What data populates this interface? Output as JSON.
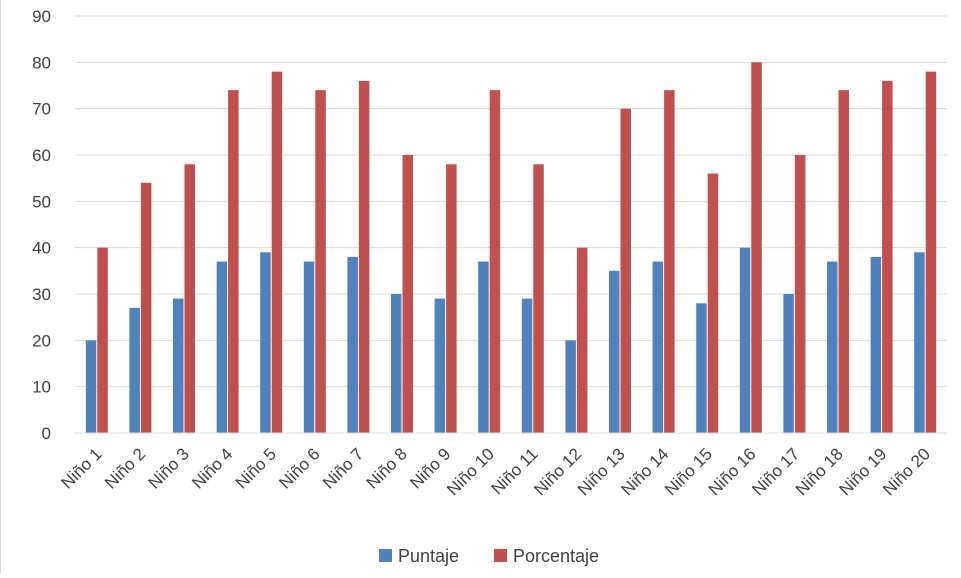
{
  "chart_data": {
    "type": "bar",
    "title": "",
    "xlabel": "",
    "ylabel": "",
    "ylim": [
      0,
      90
    ],
    "yticks": [
      0,
      10,
      20,
      30,
      40,
      50,
      60,
      70,
      80,
      90
    ],
    "grid": true,
    "legend_position": "bottom",
    "categories": [
      "Niño 1",
      "Niño 2",
      "Niño 3",
      "Niño 4",
      "Niño 5",
      "Niño 6",
      "Niño 7",
      "Niño 8",
      "Niño 9",
      "Niño 10",
      "Niño 11",
      "Niño 12",
      "Niño 13",
      "Niño 14",
      "Niño 15",
      "Niño 16",
      "Niño 17",
      "Niño 18",
      "Niño 19",
      "Niño 20"
    ],
    "series": [
      {
        "name": "Puntaje",
        "color": "#4f81bd",
        "values": [
          20,
          27,
          29,
          37,
          39,
          37,
          38,
          30,
          29,
          37,
          29,
          20,
          35,
          37,
          28,
          40,
          30,
          37,
          38,
          39
        ]
      },
      {
        "name": "Porcentaje",
        "color": "#c0504d",
        "values": [
          40,
          54,
          58,
          74,
          78,
          74,
          76,
          60,
          58,
          74,
          58,
          40,
          70,
          74,
          56,
          80,
          60,
          74,
          76,
          78
        ]
      }
    ]
  }
}
